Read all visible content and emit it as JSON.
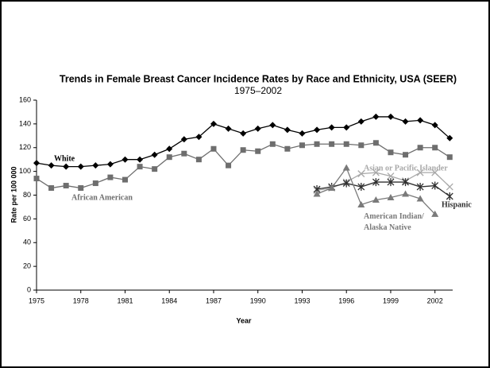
{
  "chart_data": {
    "type": "line",
    "title": "Trends in Female Breast Cancer Incidence Rates by Race and Ethnicity, USA (SEER)",
    "subtitle": "1975–2002",
    "x_label": "Year",
    "y_label": "Rate per 100 000",
    "xlim": [
      1975,
      2003.2
    ],
    "ylim": [
      0,
      160
    ],
    "xticks": [
      1975,
      1978,
      1981,
      1984,
      1987,
      1990,
      1993,
      1996,
      1999,
      2002
    ],
    "yticks": [
      0,
      20,
      40,
      60,
      80,
      100,
      120,
      140,
      160
    ],
    "grid": false,
    "series": [
      {
        "name": "White",
        "color": "#000000",
        "marker": "diamond",
        "x": [
          1975,
          1976,
          1977,
          1978,
          1979,
          1980,
          1981,
          1982,
          1983,
          1984,
          1985,
          1986,
          1987,
          1988,
          1989,
          1990,
          1991,
          1992,
          1993,
          1994,
          1995,
          1996,
          1997,
          1998,
          1999,
          2000,
          2001,
          2002,
          2003
        ],
        "values": [
          107,
          105,
          104,
          104,
          105,
          106,
          110,
          110,
          114,
          119,
          127,
          129,
          140,
          136,
          132,
          136,
          139,
          135,
          132,
          135,
          137,
          137,
          142,
          146,
          146,
          142,
          143,
          139,
          128
        ]
      },
      {
        "name": "African American",
        "color": "#6e6e6e",
        "marker": "square",
        "x": [
          1975,
          1976,
          1977,
          1978,
          1979,
          1980,
          1981,
          1982,
          1983,
          1984,
          1985,
          1986,
          1987,
          1988,
          1989,
          1990,
          1991,
          1992,
          1993,
          1994,
          1995,
          1996,
          1997,
          1998,
          1999,
          2000,
          2001,
          2002,
          2003
        ],
        "values": [
          94,
          86,
          88,
          86,
          90,
          95,
          93,
          104,
          102,
          112,
          115,
          110,
          119,
          105,
          118,
          117,
          123,
          119,
          122,
          123,
          123,
          123,
          122,
          124,
          116,
          114,
          120,
          120,
          112
        ]
      },
      {
        "name": "Asian or Pacific Islander",
        "color": "#a8a8a8",
        "marker": "x",
        "x": [
          1994,
          1995,
          1996,
          1997,
          1998,
          1999,
          2000,
          2001,
          2002,
          2003
        ],
        "values": [
          84,
          86,
          91,
          98,
          99,
          96,
          92,
          99,
          99,
          87
        ]
      },
      {
        "name": "Hispanic",
        "color": "#303030",
        "marker": "asterisk",
        "x": [
          1994,
          1995,
          1996,
          1997,
          1998,
          1999,
          2000,
          2001,
          2002,
          2003
        ],
        "values": [
          85,
          87,
          90,
          87,
          91,
          91,
          91,
          87,
          88,
          79
        ]
      },
      {
        "name": "American Indian/Alaska Native",
        "color": "#7a7a7a",
        "marker": "triangle",
        "x": [
          1994,
          1995,
          1996,
          1997,
          1998,
          1999,
          2000,
          2001,
          2002
        ],
        "values": [
          81,
          86,
          103,
          72,
          76,
          78,
          81,
          77,
          64
        ]
      }
    ]
  }
}
